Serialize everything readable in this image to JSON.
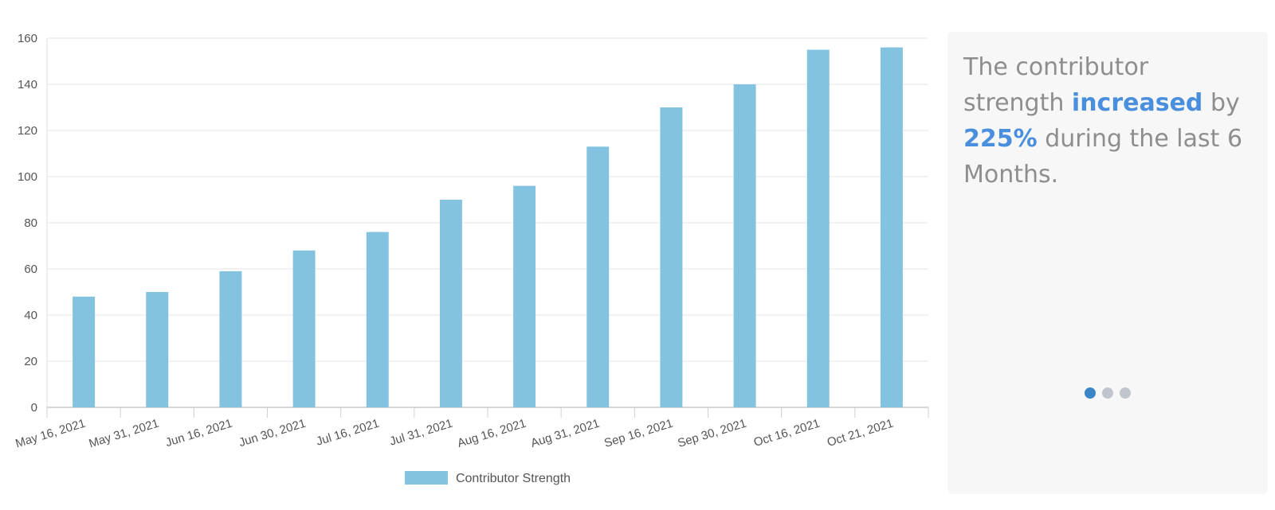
{
  "chart_data": {
    "type": "bar",
    "categories": [
      "May 16, 2021",
      "May 31, 2021",
      "Jun 16, 2021",
      "Jun 30, 2021",
      "Jul 16, 2021",
      "Jul 31, 2021",
      "Aug 16, 2021",
      "Aug 31, 2021",
      "Sep 16, 2021",
      "Sep 30, 2021",
      "Oct 16, 2021",
      "Oct 21, 2021"
    ],
    "series": [
      {
        "name": "Contributor Strength",
        "values": [
          48,
          50,
          59,
          68,
          76,
          90,
          96,
          113,
          130,
          140,
          155,
          156
        ],
        "color": "#84c3e0"
      }
    ],
    "ylim": [
      0,
      160
    ],
    "yticks": [
      0,
      20,
      40,
      60,
      80,
      100,
      120,
      140,
      160
    ],
    "grid": true,
    "legend": "bottom-center",
    "title": "",
    "xlabel": "",
    "ylabel": ""
  },
  "insight": {
    "part1": "The contributor strength ",
    "highlight1": "increased",
    "part2": " by ",
    "highlight2": "225%",
    "part3": " during the last 6 Months."
  },
  "carousel": {
    "active_index": 0,
    "count": 3
  },
  "colors": {
    "bar": "#84c3e0",
    "highlight": "#4a8fde",
    "dot_active": "#3b85c9",
    "dot_inactive": "#c0c4cc"
  }
}
